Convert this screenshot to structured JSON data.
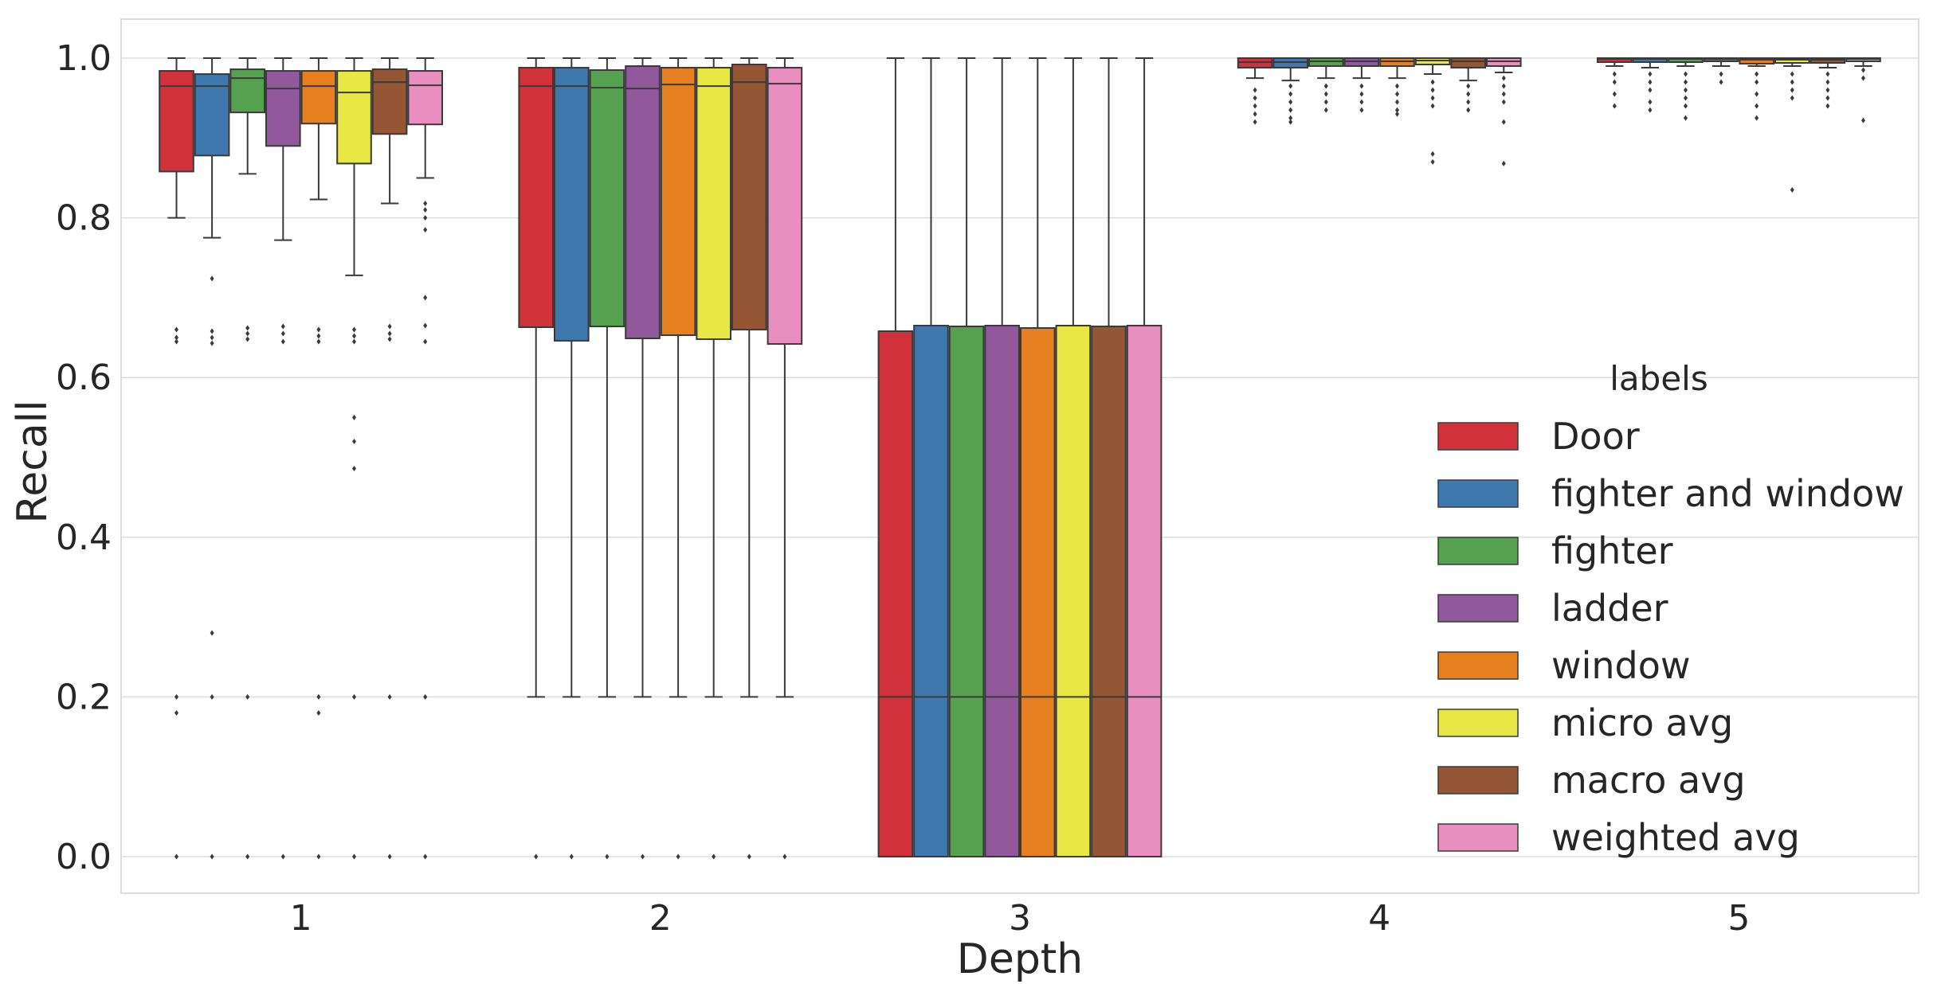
{
  "chart_data": {
    "type": "boxplot",
    "title": "",
    "xlabel": "Depth",
    "ylabel": "Recall",
    "ylim": [
      -0.05,
      1.05
    ],
    "yticks": [
      "0.0",
      "0.2",
      "0.4",
      "0.6",
      "0.8",
      "1.0"
    ],
    "ytick_values": [
      0.0,
      0.2,
      0.4,
      0.6,
      0.8,
      1.0
    ],
    "categories": [
      "1",
      "2",
      "3",
      "4",
      "5"
    ],
    "grid": true,
    "legend": {
      "title": "labels",
      "placement": "center-right"
    },
    "series": [
      {
        "name": "Door",
        "color": "#d1313a",
        "boxes": [
          {
            "q1": 0.858,
            "median": 0.965,
            "q3": 0.984,
            "whislo": 0.8,
            "whishi": 1.0,
            "fliers": [
              0.66,
              0.65,
              0.645,
              0.2,
              0.18,
              0.0
            ]
          },
          {
            "q1": 0.663,
            "median": 0.965,
            "q3": 0.988,
            "whislo": 0.2,
            "whishi": 1.0,
            "fliers": [
              0.0
            ]
          },
          {
            "q1": 0.0,
            "median": 0.2,
            "q3": 0.658,
            "whislo": 0.0,
            "whishi": 1.0,
            "fliers": []
          },
          {
            "q1": 0.988,
            "median": 0.995,
            "q3": 1.0,
            "whislo": 0.975,
            "whishi": 1.0,
            "fliers": [
              0.96,
              0.95,
              0.94,
              0.93,
              0.92
            ]
          },
          {
            "q1": 0.995,
            "median": 0.999,
            "q3": 1.0,
            "whislo": 0.99,
            "whishi": 1.0,
            "fliers": [
              0.98,
              0.97,
              0.955,
              0.94
            ]
          }
        ]
      },
      {
        "name": "fighter and window",
        "color": "#3f78ad",
        "boxes": [
          {
            "q1": 0.878,
            "median": 0.965,
            "q3": 0.98,
            "whislo": 0.775,
            "whishi": 1.0,
            "fliers": [
              0.724,
              0.658,
              0.65,
              0.643,
              0.28,
              0.2,
              0.0
            ]
          },
          {
            "q1": 0.646,
            "median": 0.965,
            "q3": 0.988,
            "whislo": 0.2,
            "whishi": 1.0,
            "fliers": [
              0.0
            ]
          },
          {
            "q1": 0.0,
            "median": 0.2,
            "q3": 0.665,
            "whislo": 0.0,
            "whishi": 1.0,
            "fliers": []
          },
          {
            "q1": 0.988,
            "median": 0.995,
            "q3": 1.0,
            "whislo": 0.972,
            "whishi": 1.0,
            "fliers": [
              0.965,
              0.955,
              0.945,
              0.935,
              0.925,
              0.92
            ]
          },
          {
            "q1": 0.995,
            "median": 0.999,
            "q3": 1.0,
            "whislo": 0.988,
            "whishi": 1.0,
            "fliers": [
              0.98,
              0.97,
              0.96,
              0.945,
              0.935
            ]
          }
        ]
      },
      {
        "name": "fighter",
        "color": "#55a150",
        "boxes": [
          {
            "q1": 0.932,
            "median": 0.975,
            "q3": 0.986,
            "whislo": 0.855,
            "whishi": 1.0,
            "fliers": [
              0.662,
              0.655,
              0.648,
              0.2,
              0.0
            ]
          },
          {
            "q1": 0.664,
            "median": 0.963,
            "q3": 0.985,
            "whislo": 0.2,
            "whishi": 1.0,
            "fliers": [
              0.0
            ]
          },
          {
            "q1": 0.0,
            "median": 0.2,
            "q3": 0.664,
            "whislo": 0.0,
            "whishi": 1.0,
            "fliers": []
          },
          {
            "q1": 0.99,
            "median": 0.996,
            "q3": 1.0,
            "whislo": 0.975,
            "whishi": 1.0,
            "fliers": [
              0.965,
              0.955,
              0.945,
              0.935
            ]
          },
          {
            "q1": 0.995,
            "median": 0.999,
            "q3": 1.0,
            "whislo": 0.99,
            "whishi": 1.0,
            "fliers": [
              0.98,
              0.97,
              0.96,
              0.95,
              0.94,
              0.925
            ]
          }
        ]
      },
      {
        "name": "ladder",
        "color": "#91599c",
        "boxes": [
          {
            "q1": 0.89,
            "median": 0.962,
            "q3": 0.984,
            "whislo": 0.772,
            "whishi": 1.0,
            "fliers": [
              0.664,
              0.655,
              0.645,
              0.0
            ]
          },
          {
            "q1": 0.649,
            "median": 0.962,
            "q3": 0.99,
            "whislo": 0.2,
            "whishi": 1.0,
            "fliers": [
              0.0
            ]
          },
          {
            "q1": 0.0,
            "median": 0.2,
            "q3": 0.665,
            "whislo": 0.0,
            "whishi": 1.0,
            "fliers": []
          },
          {
            "q1": 0.99,
            "median": 0.996,
            "q3": 1.0,
            "whislo": 0.975,
            "whishi": 1.0,
            "fliers": [
              0.965,
              0.955,
              0.945,
              0.935
            ]
          },
          {
            "q1": 0.996,
            "median": 0.999,
            "q3": 1.0,
            "whislo": 0.99,
            "whishi": 1.0,
            "fliers": [
              0.98,
              0.97
            ]
          }
        ]
      },
      {
        "name": "window",
        "color": "#e57f20",
        "boxes": [
          {
            "q1": 0.918,
            "median": 0.965,
            "q3": 0.984,
            "whislo": 0.823,
            "whishi": 1.0,
            "fliers": [
              0.66,
              0.652,
              0.645,
              0.2,
              0.18,
              0.0
            ]
          },
          {
            "q1": 0.653,
            "median": 0.967,
            "q3": 0.988,
            "whislo": 0.2,
            "whishi": 1.0,
            "fliers": [
              0.0
            ]
          },
          {
            "q1": 0.0,
            "median": 0.2,
            "q3": 0.662,
            "whislo": 0.0,
            "whishi": 1.0,
            "fliers": []
          },
          {
            "q1": 0.99,
            "median": 0.996,
            "q3": 1.0,
            "whislo": 0.975,
            "whishi": 1.0,
            "fliers": [
              0.965,
              0.955,
              0.945,
              0.935,
              0.93
            ]
          },
          {
            "q1": 0.993,
            "median": 0.998,
            "q3": 1.0,
            "whislo": 0.99,
            "whishi": 1.0,
            "fliers": [
              0.98,
              0.97,
              0.955,
              0.94,
              0.925
            ]
          }
        ]
      },
      {
        "name": "micro avg",
        "color": "#e9e744",
        "boxes": [
          {
            "q1": 0.868,
            "median": 0.957,
            "q3": 0.984,
            "whislo": 0.728,
            "whishi": 1.0,
            "fliers": [
              0.66,
              0.652,
              0.645,
              0.55,
              0.52,
              0.486,
              0.2,
              0.0
            ]
          },
          {
            "q1": 0.648,
            "median": 0.965,
            "q3": 0.988,
            "whislo": 0.2,
            "whishi": 1.0,
            "fliers": [
              0.0
            ]
          },
          {
            "q1": 0.0,
            "median": 0.2,
            "q3": 0.665,
            "whislo": 0.0,
            "whishi": 1.0,
            "fliers": []
          },
          {
            "q1": 0.992,
            "median": 0.997,
            "q3": 1.0,
            "whislo": 0.98,
            "whishi": 1.0,
            "fliers": [
              0.97,
              0.96,
              0.95,
              0.94,
              0.88,
              0.87
            ]
          },
          {
            "q1": 0.994,
            "median": 0.998,
            "q3": 1.0,
            "whislo": 0.99,
            "whishi": 1.0,
            "fliers": [
              0.98,
              0.97,
              0.96,
              0.95,
              0.835
            ]
          }
        ]
      },
      {
        "name": "macro avg",
        "color": "#955636",
        "boxes": [
          {
            "q1": 0.905,
            "median": 0.97,
            "q3": 0.986,
            "whislo": 0.818,
            "whishi": 1.0,
            "fliers": [
              0.664,
              0.655,
              0.648,
              0.2,
              0.0
            ]
          },
          {
            "q1": 0.66,
            "median": 0.97,
            "q3": 0.992,
            "whislo": 0.2,
            "whishi": 1.0,
            "fliers": [
              0.0
            ]
          },
          {
            "q1": 0.0,
            "median": 0.2,
            "q3": 0.664,
            "whislo": 0.0,
            "whishi": 1.0,
            "fliers": []
          },
          {
            "q1": 0.988,
            "median": 0.996,
            "q3": 1.0,
            "whislo": 0.972,
            "whishi": 1.0,
            "fliers": [
              0.965,
              0.955,
              0.945,
              0.935
            ]
          },
          {
            "q1": 0.994,
            "median": 0.998,
            "q3": 1.0,
            "whislo": 0.988,
            "whishi": 1.0,
            "fliers": [
              0.98,
              0.97,
              0.96,
              0.95,
              0.94
            ]
          }
        ]
      },
      {
        "name": "weighted avg",
        "color": "#e88fc0",
        "boxes": [
          {
            "q1": 0.917,
            "median": 0.966,
            "q3": 0.984,
            "whislo": 0.85,
            "whishi": 1.0,
            "fliers": [
              0.818,
              0.81,
              0.8,
              0.785,
              0.7,
              0.665,
              0.645,
              0.2,
              0.0
            ]
          },
          {
            "q1": 0.642,
            "median": 0.968,
            "q3": 0.988,
            "whislo": 0.2,
            "whishi": 1.0,
            "fliers": [
              0.0
            ]
          },
          {
            "q1": 0.0,
            "median": 0.2,
            "q3": 0.665,
            "whislo": 0.0,
            "whishi": 1.0,
            "fliers": []
          },
          {
            "q1": 0.99,
            "median": 0.996,
            "q3": 1.0,
            "whislo": 0.982,
            "whishi": 1.0,
            "fliers": [
              0.975,
              0.965,
              0.955,
              0.945,
              0.92,
              0.868
            ]
          },
          {
            "q1": 0.996,
            "median": 0.999,
            "q3": 1.0,
            "whislo": 0.99,
            "whishi": 1.0,
            "fliers": [
              0.985,
              0.975,
              0.922
            ]
          }
        ]
      }
    ]
  }
}
